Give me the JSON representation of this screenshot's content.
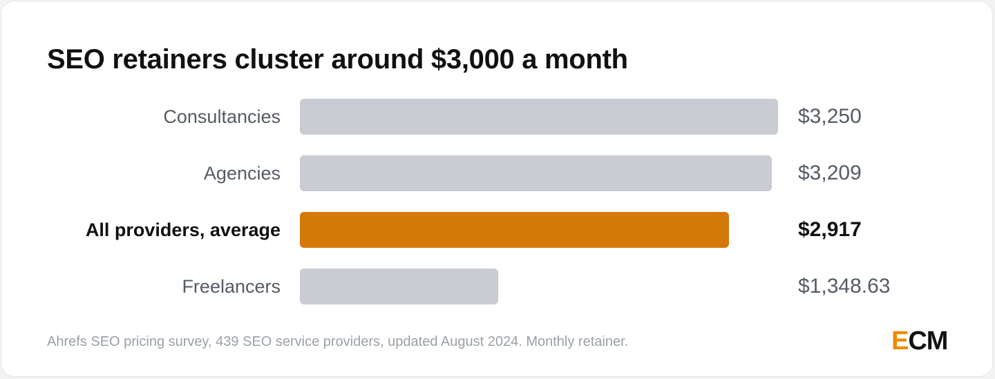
{
  "card": {
    "title": "SEO retainers cluster around $3,000 a month",
    "footnote": "Ahrefs SEO pricing survey, 439 SEO service providers, updated August 2024. Monthly retainer.",
    "logo": {
      "first": "E",
      "rest": "CM"
    }
  },
  "colors": {
    "bar_default": "#c9ccd3",
    "bar_highlight": "#d5780a",
    "logo_accent": "#f08a00"
  },
  "chart_data": {
    "type": "bar",
    "orientation": "horizontal",
    "title": "SEO retainers cluster around $3,000 a month",
    "xlabel": "",
    "ylabel": "",
    "grid": false,
    "xlim": [
      0,
      3250
    ],
    "categories": [
      "Consultancies",
      "Agencies",
      "All providers, average",
      "Freelancers"
    ],
    "values": [
      3250,
      3209,
      2917,
      1348.63
    ],
    "value_labels": [
      "$3,250",
      "$3,209",
      "$2,917",
      "$1,348.63"
    ],
    "highlight": [
      false,
      false,
      true,
      false
    ]
  }
}
